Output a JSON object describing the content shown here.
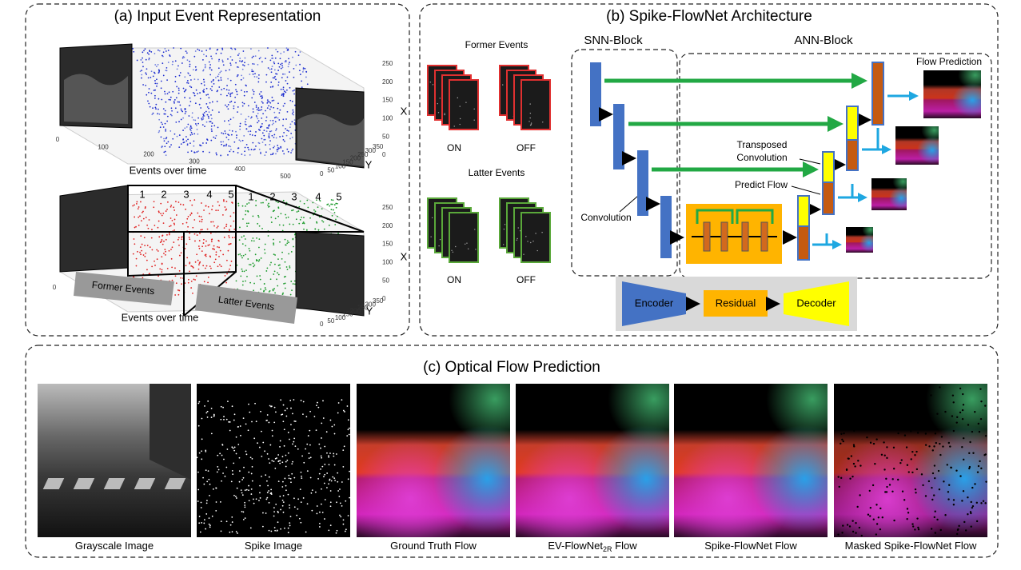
{
  "panel_a": {
    "title": "(a) Input Event Representation",
    "top_plot": {
      "x_label": "Events over time",
      "z_label": "X",
      "y_label": "Y",
      "x_ticks": [
        0,
        100,
        200,
        300,
        400,
        500
      ],
      "z_ticks": [
        0,
        50,
        100,
        150,
        200,
        250
      ],
      "y_ticks": [
        0,
        50,
        100,
        150,
        200,
        250,
        300,
        350
      ]
    },
    "bottom_plot": {
      "x_label": "Events over time",
      "z_label": "X",
      "y_label": "Y",
      "x_ticks": [
        0
      ],
      "z_ticks": [
        0,
        50,
        100,
        150,
        200,
        250
      ],
      "y_ticks": [
        0,
        50,
        100,
        150,
        200,
        250,
        300,
        350
      ],
      "former_bins": [
        "1",
        "2",
        "3",
        "4",
        "5"
      ],
      "latter_bins": [
        "1",
        "2",
        "3",
        "4",
        "5"
      ],
      "former_label": "Former Events",
      "latter_label": "Latter Events"
    }
  },
  "panel_b": {
    "title": "(b) Spike-FlowNet Architecture",
    "former_events": "Former Events",
    "latter_events": "Latter Events",
    "former_on": "ON",
    "former_off": "OFF",
    "latter_on": "ON",
    "latter_off": "OFF",
    "snn_block": "SNN-Block",
    "ann_block": "ANN-Block",
    "flow_prediction": "Flow Prediction",
    "transposed_convolution": [
      "Transposed",
      "Convolution"
    ],
    "predict_flow": "Predict Flow",
    "convolution": "Convolution",
    "legend": {
      "encoder": "Encoder",
      "residual": "Residual",
      "decoder": "Decoder"
    }
  },
  "panel_c": {
    "title": "(c) Optical Flow Prediction",
    "captions": [
      {
        "text": "Grayscale Image"
      },
      {
        "text": "Spike Image"
      },
      {
        "text": "Ground Truth Flow"
      },
      {
        "text": "EV-FlowNet",
        "sub": "2R",
        "tail": " Flow"
      },
      {
        "text": "Spike-FlowNet Flow"
      },
      {
        "text": "Masked Spike-FlowNet Flow"
      }
    ]
  }
}
